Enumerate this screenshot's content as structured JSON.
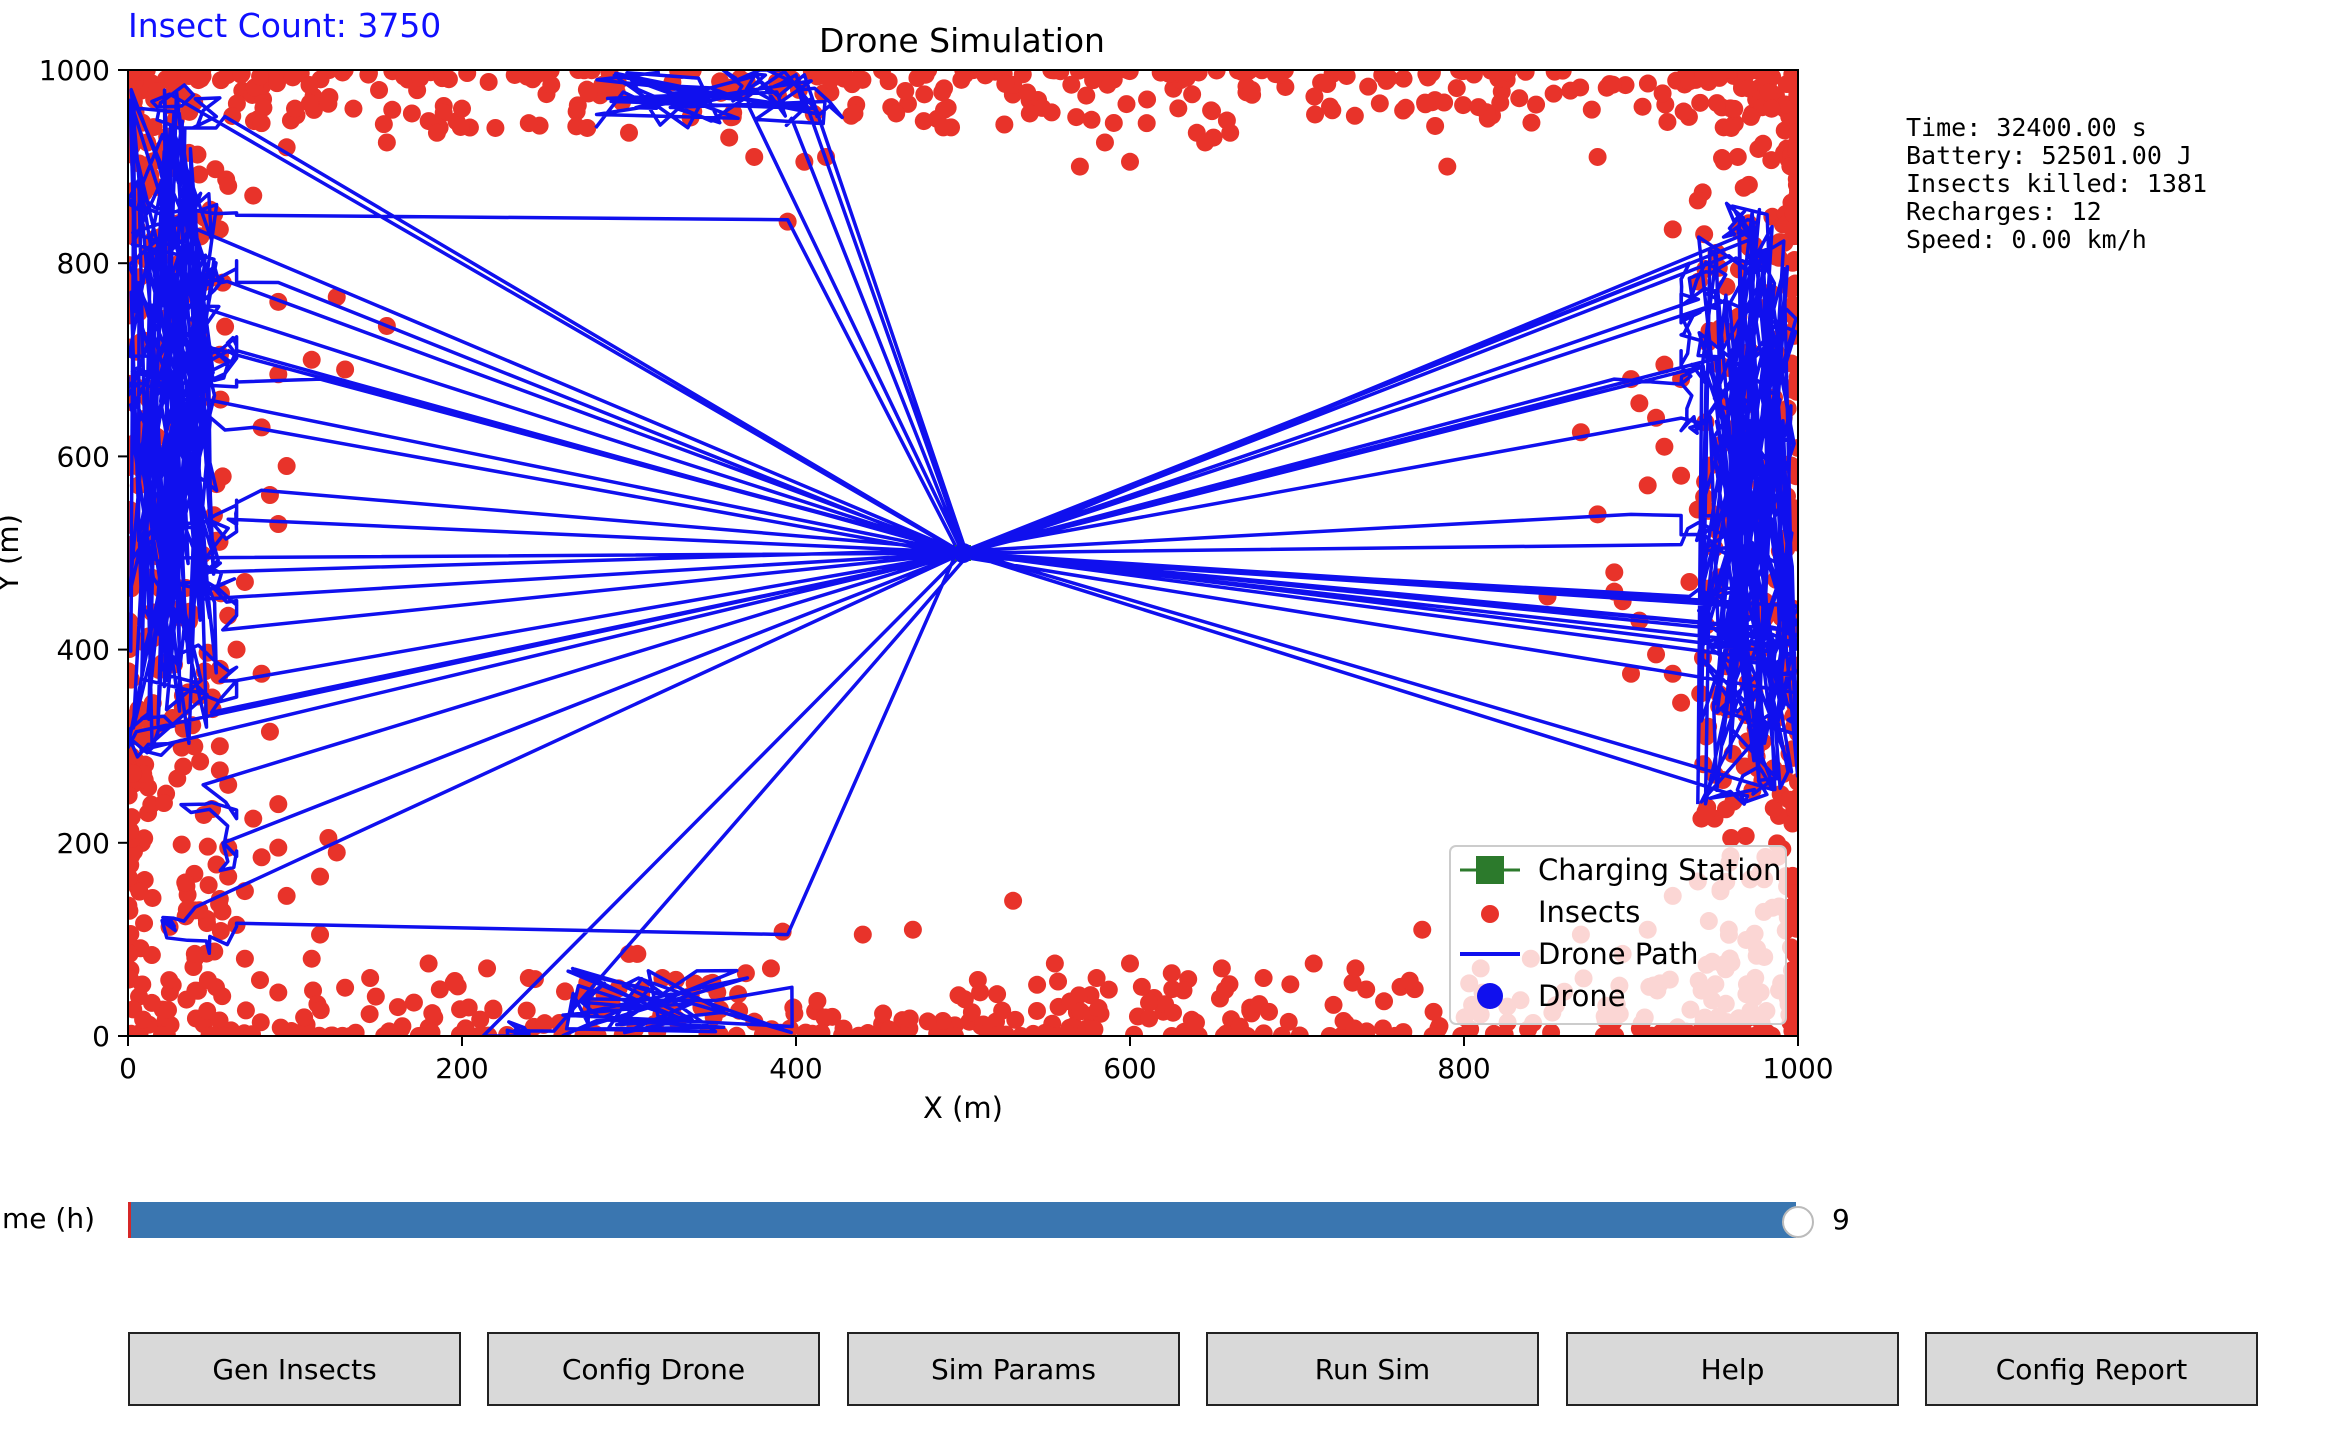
{
  "insect_count_text": "Insect Count: 3750",
  "info_lines": [
    "Time: 32400.00 s",
    "Battery: 52501.00 J",
    "Insects killed: 1381",
    "Recharges: 12",
    "Speed: 0.00 km/h"
  ],
  "slider": {
    "label": "Time (h)",
    "value_text": "9",
    "fraction": 1.0,
    "fill_color": "#3a76b0",
    "initial_marker_color": "#d62728"
  },
  "buttons": [
    {
      "label": "Gen Insects"
    },
    {
      "label": "Config Drone"
    },
    {
      "label": "Sim Params"
    },
    {
      "label": "Run Sim"
    },
    {
      "label": "Help"
    },
    {
      "label": "Config Report"
    }
  ],
  "chart_data": {
    "type": "scatter",
    "title": "Drone Simulation",
    "xlabel": "X (m)",
    "ylabel": "Y (m)",
    "xlim": [
      0,
      1000
    ],
    "ylim": [
      0,
      1000
    ],
    "xticks": [
      "0",
      "200",
      "400",
      "600",
      "800",
      "1000"
    ],
    "yticks": [
      "0",
      "200",
      "400",
      "600",
      "800",
      "1000"
    ],
    "grid": false,
    "legend_position": "lower-right",
    "colors": {
      "insects": "#e8332a",
      "path": "#1010ee",
      "drone": "#1010ee",
      "station": "#2c7a2c"
    },
    "legend": [
      {
        "label": "Charging Station",
        "marker": "square-line",
        "color": "#2c7a2c"
      },
      {
        "label": "Insects",
        "marker": "dot",
        "color": "#e8332a"
      },
      {
        "label": "Drone Path",
        "marker": "line",
        "color": "#1010ee"
      },
      {
        "label": "Drone",
        "marker": "dot-large",
        "color": "#1010ee"
      }
    ],
    "charging_station": [
      500,
      500
    ],
    "drone_position": [
      500,
      500
    ],
    "insects_inner": [
      [
        940,
        865
      ],
      [
        925,
        835
      ],
      [
        880,
        910
      ],
      [
        960,
        940
      ],
      [
        790,
        900
      ],
      [
        540,
        955
      ],
      [
        570,
        900
      ],
      [
        600,
        905
      ],
      [
        640,
        935
      ],
      [
        650,
        930
      ],
      [
        660,
        935
      ],
      [
        645,
        925
      ],
      [
        610,
        945
      ],
      [
        585,
        925
      ],
      [
        460,
        955
      ],
      [
        435,
        955
      ],
      [
        418,
        910
      ],
      [
        405,
        905
      ],
      [
        395,
        843
      ],
      [
        375,
        910
      ],
      [
        370,
        980
      ],
      [
        360,
        930
      ],
      [
        300,
        935
      ],
      [
        275,
        940
      ],
      [
        240,
        945
      ],
      [
        220,
        940
      ],
      [
        200,
        960
      ],
      [
        185,
        935
      ],
      [
        170,
        955
      ],
      [
        155,
        925
      ],
      [
        135,
        960
      ],
      [
        120,
        965
      ],
      [
        95,
        920
      ],
      [
        100,
        960
      ],
      [
        80,
        945
      ],
      [
        60,
        880
      ],
      [
        75,
        870
      ],
      [
        55,
        835
      ],
      [
        90,
        760
      ],
      [
        125,
        765
      ],
      [
        155,
        735
      ],
      [
        45,
        780
      ],
      [
        110,
        700
      ],
      [
        130,
        690
      ],
      [
        90,
        685
      ],
      [
        80,
        630
      ],
      [
        95,
        590
      ],
      [
        85,
        560
      ],
      [
        90,
        530
      ],
      [
        70,
        470
      ],
      [
        60,
        435
      ],
      [
        55,
        380
      ],
      [
        80,
        375
      ],
      [
        65,
        400
      ],
      [
        55,
        300
      ],
      [
        85,
        315
      ],
      [
        55,
        275
      ],
      [
        60,
        260
      ],
      [
        75,
        225
      ],
      [
        90,
        240
      ],
      [
        60,
        195
      ],
      [
        90,
        195
      ],
      [
        80,
        185
      ],
      [
        120,
        205
      ],
      [
        125,
        190
      ],
      [
        115,
        165
      ],
      [
        60,
        165
      ],
      [
        70,
        150
      ],
      [
        95,
        145
      ],
      [
        40,
        130
      ],
      [
        65,
        115
      ],
      [
        40,
        85
      ],
      [
        70,
        80
      ],
      [
        90,
        45
      ],
      [
        110,
        80
      ],
      [
        115,
        105
      ],
      [
        130,
        50
      ],
      [
        145,
        60
      ],
      [
        180,
        75
      ],
      [
        195,
        55
      ],
      [
        215,
        70
      ],
      [
        240,
        60
      ],
      [
        275,
        55
      ],
      [
        300,
        85
      ],
      [
        305,
        85
      ],
      [
        320,
        60
      ],
      [
        350,
        55
      ],
      [
        370,
        65
      ],
      [
        385,
        70
      ],
      [
        392,
        108
      ],
      [
        440,
        105
      ],
      [
        470,
        110
      ],
      [
        530,
        140
      ],
      [
        555,
        75
      ],
      [
        580,
        60
      ],
      [
        600,
        75
      ],
      [
        625,
        65
      ],
      [
        655,
        70
      ],
      [
        680,
        60
      ],
      [
        710,
        75
      ],
      [
        735,
        70
      ],
      [
        775,
        110
      ],
      [
        810,
        70
      ],
      [
        840,
        80
      ],
      [
        870,
        105
      ],
      [
        895,
        85
      ],
      [
        910,
        110
      ],
      [
        925,
        145
      ],
      [
        940,
        160
      ],
      [
        960,
        205
      ],
      [
        950,
        225
      ],
      [
        945,
        230
      ],
      [
        955,
        265
      ],
      [
        945,
        310
      ],
      [
        930,
        345
      ],
      [
        925,
        375
      ],
      [
        915,
        395
      ],
      [
        905,
        430
      ],
      [
        900,
        375
      ],
      [
        895,
        450
      ],
      [
        890,
        480
      ],
      [
        930,
        580
      ],
      [
        920,
        610
      ],
      [
        915,
        640
      ],
      [
        930,
        680
      ],
      [
        905,
        655
      ],
      [
        880,
        540
      ],
      [
        870,
        625
      ],
      [
        850,
        455
      ],
      [
        890,
        460
      ],
      [
        910,
        570
      ],
      [
        940,
        545
      ],
      [
        950,
        505
      ],
      [
        950,
        460
      ],
      [
        935,
        470
      ],
      [
        945,
        425
      ],
      [
        900,
        680
      ],
      [
        920,
        695
      ]
    ]
  }
}
